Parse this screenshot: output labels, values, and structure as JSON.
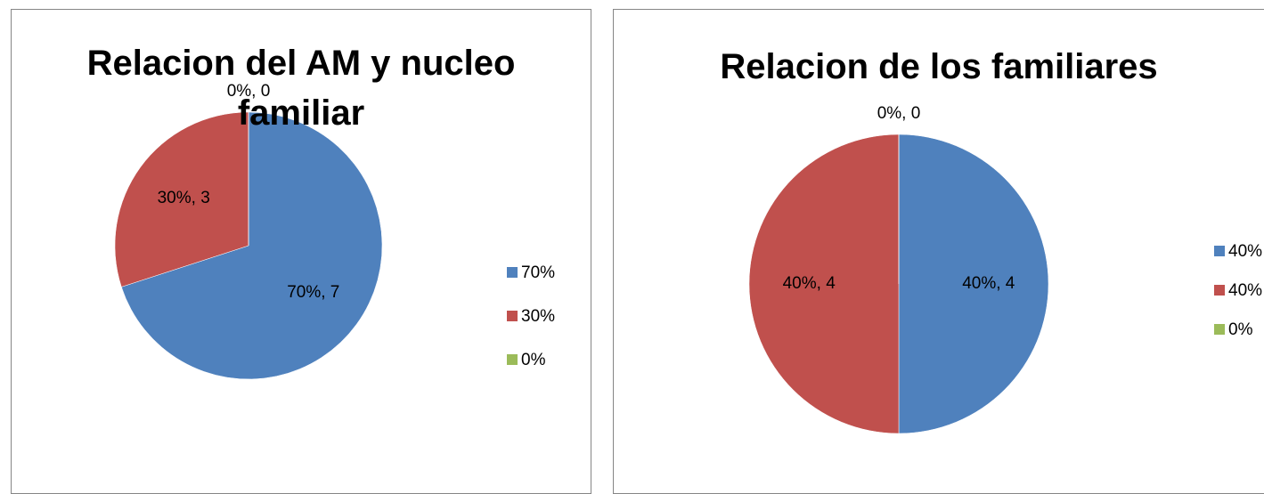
{
  "chart_data": [
    {
      "type": "pie",
      "title": "Relacion del AM y nucleo familiar",
      "categories": [
        "70%",
        "30%",
        "0%"
      ],
      "values": [
        7,
        3,
        0
      ],
      "value_labels": [
        "70%, 7",
        "30%, 3",
        "0%, 0"
      ],
      "colors": [
        "#4f81bd",
        "#c0504d",
        "#9bbb59"
      ],
      "legend": "right"
    },
    {
      "type": "pie",
      "title": "Relacion de los familiares",
      "categories": [
        "40%",
        "40%",
        "0%"
      ],
      "values": [
        4,
        4,
        0
      ],
      "value_labels": [
        "40%, 4",
        "40%, 4",
        "0%, 0"
      ],
      "colors": [
        "#4f81bd",
        "#c0504d",
        "#9bbb59"
      ],
      "legend": "right"
    }
  ]
}
